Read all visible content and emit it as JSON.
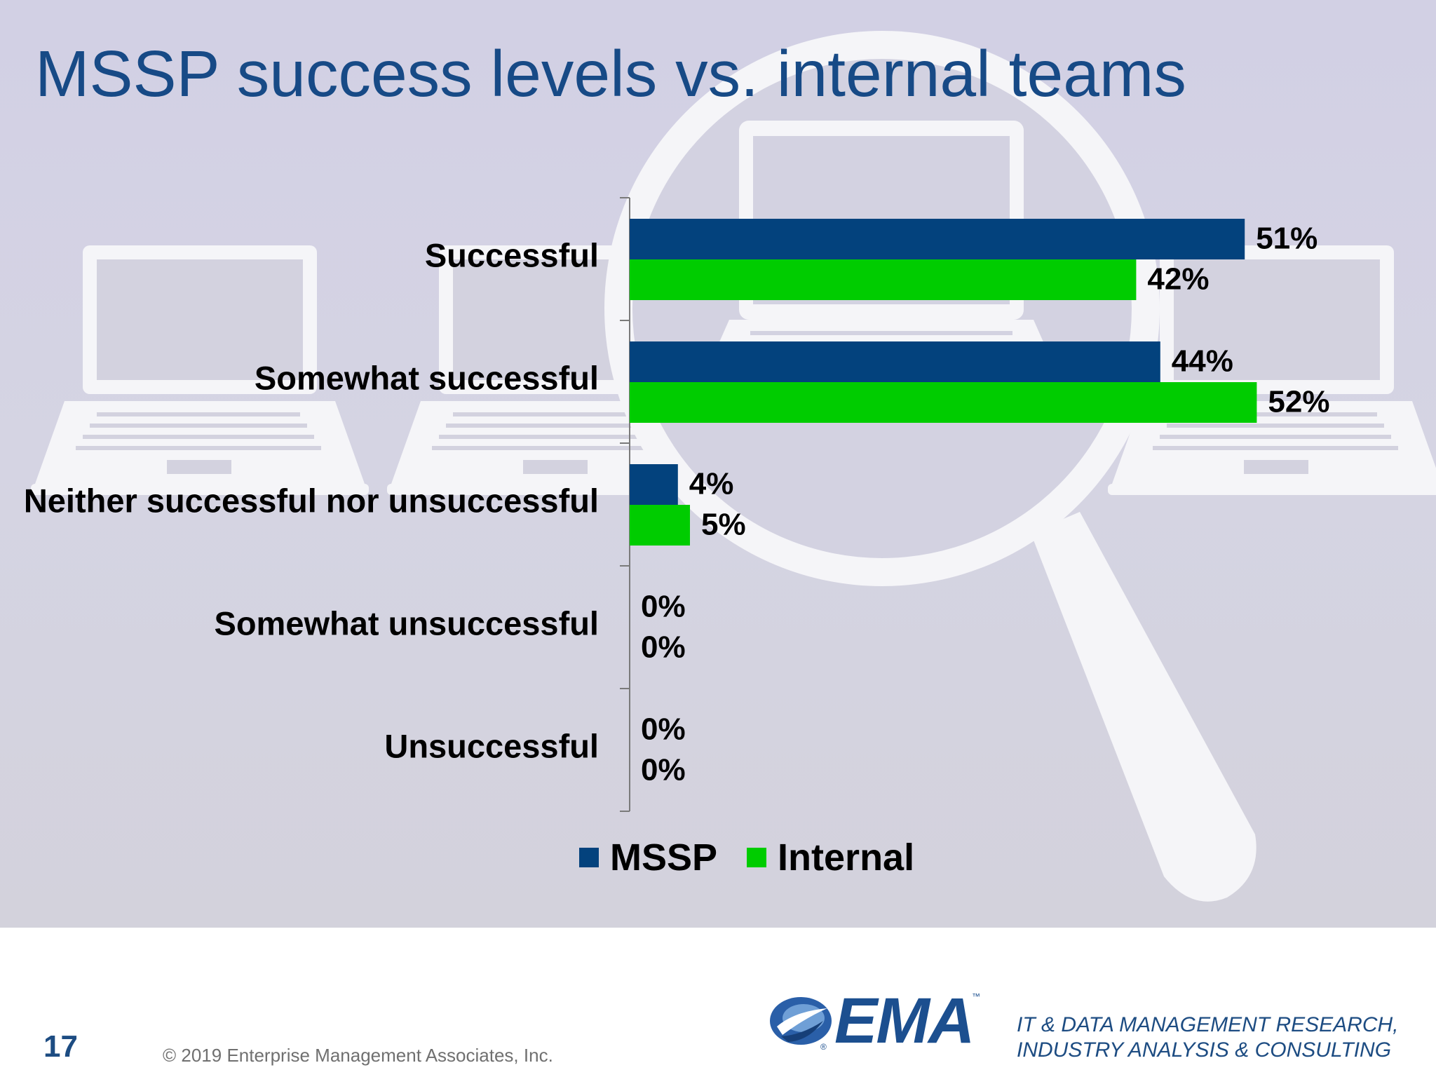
{
  "slide": {
    "title": "MSSP success levels vs. internal teams",
    "page_number": "17",
    "copyright": "© 2019 Enterprise Management Associates, Inc.",
    "logo_text": "EMA",
    "logo_tm": "™",
    "logo_reg": "®",
    "tagline_line1": "IT & DATA MANAGEMENT RESEARCH,",
    "tagline_line2": "INDUSTRY ANALYSIS & CONSULTING"
  },
  "colors": {
    "title": "#174a86",
    "mssp": "#03427d",
    "internal": "#00cc00",
    "background": "#d4d3e3"
  },
  "icons": [
    "laptop-icon",
    "magnifying-glass-icon",
    "ema-logo-icon"
  ],
  "chart_data": {
    "type": "bar",
    "orientation": "horizontal",
    "categories": [
      "Successful",
      "Somewhat successful",
      "Neither successful nor unsuccessful",
      "Somewhat unsuccessful",
      "Unsuccessful"
    ],
    "series": [
      {
        "name": "MSSP",
        "color": "#03427d",
        "values": [
          51,
          44,
          4,
          0,
          0
        ],
        "labels": [
          "51%",
          "44%",
          "4%",
          "0%",
          "0%"
        ]
      },
      {
        "name": "Internal",
        "color": "#00cc00",
        "values": [
          42,
          52,
          5,
          0,
          0
        ],
        "labels": [
          "42%",
          "52%",
          "5%",
          "0%",
          "0%"
        ]
      }
    ],
    "unit": "%",
    "xlim": [
      0,
      100
    ],
    "grid": false,
    "legend_position": "bottom",
    "data_labels": true
  }
}
